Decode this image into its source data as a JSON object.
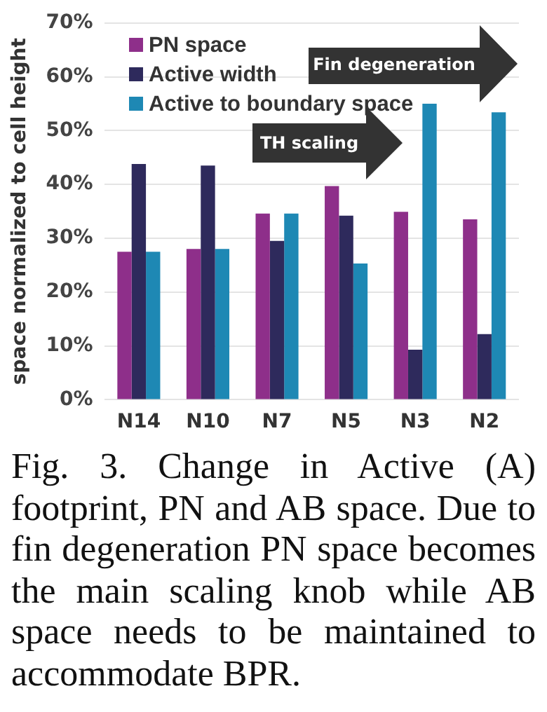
{
  "chart_data": {
    "type": "bar",
    "ylabel": "space normalized to cell height",
    "categories": [
      "N14",
      "N10",
      "N7",
      "N5",
      "N3",
      "N2"
    ],
    "series": [
      {
        "name": "PN space",
        "color": "#8e2f8a",
        "values": [
          27.5,
          28,
          34.6,
          39.7,
          34.9,
          33.5
        ]
      },
      {
        "name": "Active width",
        "color": "#2e2a5c",
        "values": [
          43.8,
          43.5,
          29.5,
          34.2,
          9.3,
          12.2
        ]
      },
      {
        "name": "Active to boundary space",
        "color": "#1e88b4",
        "values": [
          27.5,
          28,
          34.6,
          25.3,
          55,
          53.4
        ]
      }
    ],
    "ylim": [
      0,
      70
    ],
    "yticks": [
      {
        "value": 0,
        "label": "0%"
      },
      {
        "value": 10,
        "label": "10%"
      },
      {
        "value": 20,
        "label": "20%"
      },
      {
        "value": 30,
        "label": "30%"
      },
      {
        "value": 40,
        "label": "40%"
      },
      {
        "value": 50,
        "label": "50%"
      },
      {
        "value": 60,
        "label": "60%"
      },
      {
        "value": 70,
        "label": "70%"
      }
    ],
    "grid": "y",
    "legend": "top left",
    "annotations": [
      "TH scaling",
      "Fin degeneration",
      "Fig. 3. Change in Active (A) footprint, PN and AB space. Due to fin degeneration PN space becomes the main scaling knob while AB space needs to be maintained to accommodate BPR."
    ]
  }
}
